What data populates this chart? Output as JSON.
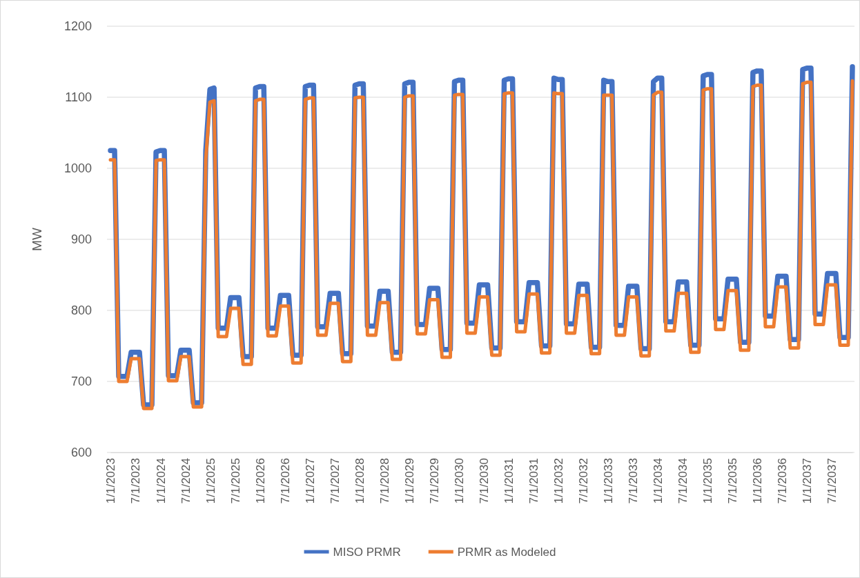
{
  "chart_data": {
    "type": "line",
    "ylabel": "MW",
    "ylim": [
      600,
      1200
    ],
    "yticks": [
      600,
      700,
      800,
      900,
      1000,
      1100,
      1200
    ],
    "grid": "y",
    "legend": "bottom",
    "marker": "none",
    "line_style": "solid",
    "categories": [
      "1/1/2023",
      null,
      null,
      null,
      null,
      null,
      "7/1/2023",
      null,
      null,
      null,
      null,
      null,
      "1/1/2024",
      null,
      null,
      null,
      null,
      null,
      "7/1/2024",
      null,
      null,
      null,
      null,
      null,
      "1/1/2025",
      null,
      null,
      null,
      null,
      null,
      "7/1/2025",
      null,
      null,
      null,
      null,
      null,
      "1/1/2026",
      null,
      null,
      null,
      null,
      null,
      "7/1/2026",
      null,
      null,
      null,
      null,
      null,
      "1/1/2027",
      null,
      null,
      null,
      null,
      null,
      "7/1/2027",
      null,
      null,
      null,
      null,
      null,
      "1/1/2028",
      null,
      null,
      null,
      null,
      null,
      "7/1/2028",
      null,
      null,
      null,
      null,
      null,
      "1/1/2029",
      null,
      null,
      null,
      null,
      null,
      "7/1/2029",
      null,
      null,
      null,
      null,
      null,
      "1/1/2030",
      null,
      null,
      null,
      null,
      null,
      "7/1/2030",
      null,
      null,
      null,
      null,
      null,
      "1/1/2031",
      null,
      null,
      null,
      null,
      null,
      "7/1/2031",
      null,
      null,
      null,
      null,
      null,
      "1/1/2032",
      null,
      null,
      null,
      null,
      null,
      "7/1/2032",
      null,
      null,
      null,
      null,
      null,
      "1/1/2033",
      null,
      null,
      null,
      null,
      null,
      "7/1/2033",
      null,
      null,
      null,
      null,
      null,
      "1/1/2034",
      null,
      null,
      null,
      null,
      null,
      "7/1/2034",
      null,
      null,
      null,
      null,
      null,
      "1/1/2035",
      null,
      null,
      null,
      null,
      null,
      "7/1/2035",
      null,
      null,
      null,
      null,
      null,
      "1/1/2036",
      null,
      null,
      null,
      null,
      null,
      "7/1/2036",
      null,
      null,
      null,
      null,
      null,
      "1/1/2037",
      null,
      null,
      null,
      null,
      null,
      "7/1/2037",
      null,
      null,
      null,
      null,
      null
    ],
    "series": [
      {
        "name": "MISO PRMR",
        "color": "#4472c4",
        "values": [
          1025,
          1025,
          707,
          707,
          707,
          741,
          741,
          741,
          667,
          667,
          667,
          1023,
          1025,
          1025,
          708,
          708,
          708,
          744,
          744,
          744,
          670,
          670,
          670,
          1025,
          1111,
          1113,
          775,
          775,
          775,
          818,
          818,
          818,
          735,
          735,
          735,
          1113,
          1115,
          1115,
          775,
          775,
          775,
          821,
          821,
          821,
          737,
          737,
          737,
          1115,
          1117,
          1117,
          777,
          777,
          777,
          824,
          824,
          824,
          739,
          739,
          739,
          1117,
          1119,
          1119,
          778,
          778,
          778,
          827,
          827,
          827,
          741,
          741,
          741,
          1119,
          1121,
          1121,
          780,
          780,
          780,
          831,
          831,
          831,
          745,
          745,
          745,
          1122,
          1124,
          1124,
          782,
          782,
          782,
          836,
          836,
          836,
          747,
          747,
          747,
          1124,
          1126,
          1126,
          784,
          784,
          784,
          839,
          839,
          839,
          750,
          750,
          750,
          1127,
          1125,
          1125,
          781,
          781,
          781,
          837,
          837,
          837,
          748,
          748,
          748,
          1124,
          1122,
          1122,
          779,
          779,
          779,
          834,
          834,
          834,
          746,
          746,
          746,
          1122,
          1127,
          1127,
          784,
          784,
          784,
          840,
          840,
          840,
          751,
          751,
          751,
          1130,
          1132,
          1132,
          788,
          788,
          788,
          844,
          844,
          844,
          755,
          755,
          755,
          1135,
          1137,
          1137,
          792,
          792,
          792,
          848,
          848,
          848,
          759,
          759,
          759,
          1139,
          1141,
          1141,
          795,
          795,
          795,
          852,
          852,
          852,
          762,
          762,
          762,
          1143
        ]
      },
      {
        "name": "PRMR as Modeled",
        "color": "#ed7d31",
        "values": [
          1012,
          1012,
          700,
          700,
          700,
          732,
          732,
          732,
          662,
          662,
          662,
          1011,
          1012,
          1012,
          701,
          701,
          701,
          735,
          735,
          735,
          664,
          664,
          664,
          1012,
          1093,
          1095,
          763,
          763,
          763,
          803,
          803,
          803,
          724,
          724,
          724,
          1095,
          1097,
          1097,
          764,
          764,
          764,
          806,
          806,
          806,
          726,
          726,
          726,
          1097,
          1099,
          1099,
          765,
          765,
          765,
          810,
          810,
          810,
          728,
          728,
          728,
          1099,
          1100,
          1100,
          765,
          765,
          765,
          811,
          811,
          811,
          731,
          731,
          731,
          1100,
          1102,
          1102,
          767,
          767,
          767,
          815,
          815,
          815,
          734,
          734,
          734,
          1103,
          1104,
          1104,
          768,
          768,
          768,
          819,
          819,
          819,
          737,
          737,
          737,
          1105,
          1106,
          1106,
          770,
          770,
          770,
          823,
          823,
          823,
          740,
          740,
          740,
          1106,
          1105,
          1105,
          768,
          768,
          768,
          821,
          821,
          821,
          739,
          739,
          739,
          1103,
          1103,
          1103,
          765,
          765,
          765,
          819,
          819,
          819,
          736,
          736,
          736,
          1103,
          1107,
          1107,
          771,
          771,
          771,
          824,
          824,
          824,
          741,
          741,
          741,
          1110,
          1112,
          1112,
          773,
          773,
          773,
          828,
          828,
          828,
          744,
          744,
          744,
          1115,
          1117,
          1117,
          777,
          777,
          777,
          833,
          833,
          833,
          747,
          747,
          747,
          1119,
          1121,
          1121,
          780,
          780,
          780,
          836,
          836,
          836,
          751,
          751,
          751,
          1123
        ]
      }
    ]
  }
}
